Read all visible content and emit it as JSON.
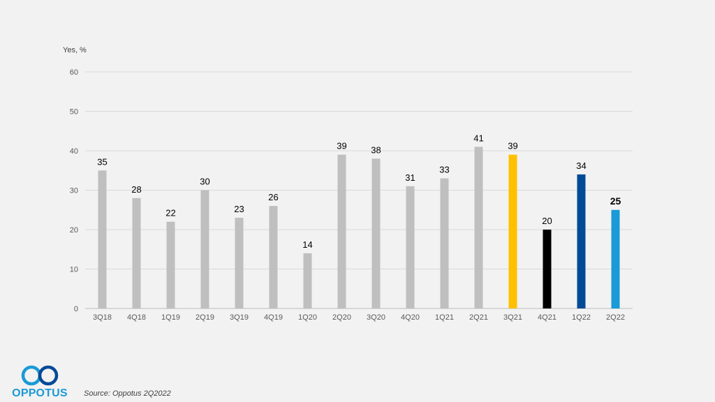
{
  "chart_data": {
    "type": "bar",
    "ylabel": "Yes, %",
    "ylim": [
      0,
      60
    ],
    "yticks": [
      0,
      10,
      20,
      30,
      40,
      50,
      60
    ],
    "categories": [
      "3Q18",
      "4Q18",
      "1Q19",
      "2Q19",
      "3Q19",
      "4Q19",
      "1Q20",
      "2Q20",
      "3Q20",
      "4Q20",
      "1Q21",
      "2Q21",
      "3Q21",
      "4Q21",
      "1Q22",
      "2Q22"
    ],
    "values": [
      35,
      28,
      22,
      30,
      23,
      26,
      14,
      39,
      38,
      31,
      33,
      41,
      39,
      20,
      34,
      25
    ],
    "colors": [
      "#bfbfbf",
      "#bfbfbf",
      "#bfbfbf",
      "#bfbfbf",
      "#bfbfbf",
      "#bfbfbf",
      "#bfbfbf",
      "#bfbfbf",
      "#bfbfbf",
      "#bfbfbf",
      "#bfbfbf",
      "#bfbfbf",
      "#ffc000",
      "#000000",
      "#004a97",
      "#1a9ad6"
    ],
    "bold_last_label": true,
    "grid": true
  },
  "source": "Source: Oppotus 2Q2022",
  "logo": {
    "text": "OPPOTUS",
    "color": "#1a9ad6"
  }
}
